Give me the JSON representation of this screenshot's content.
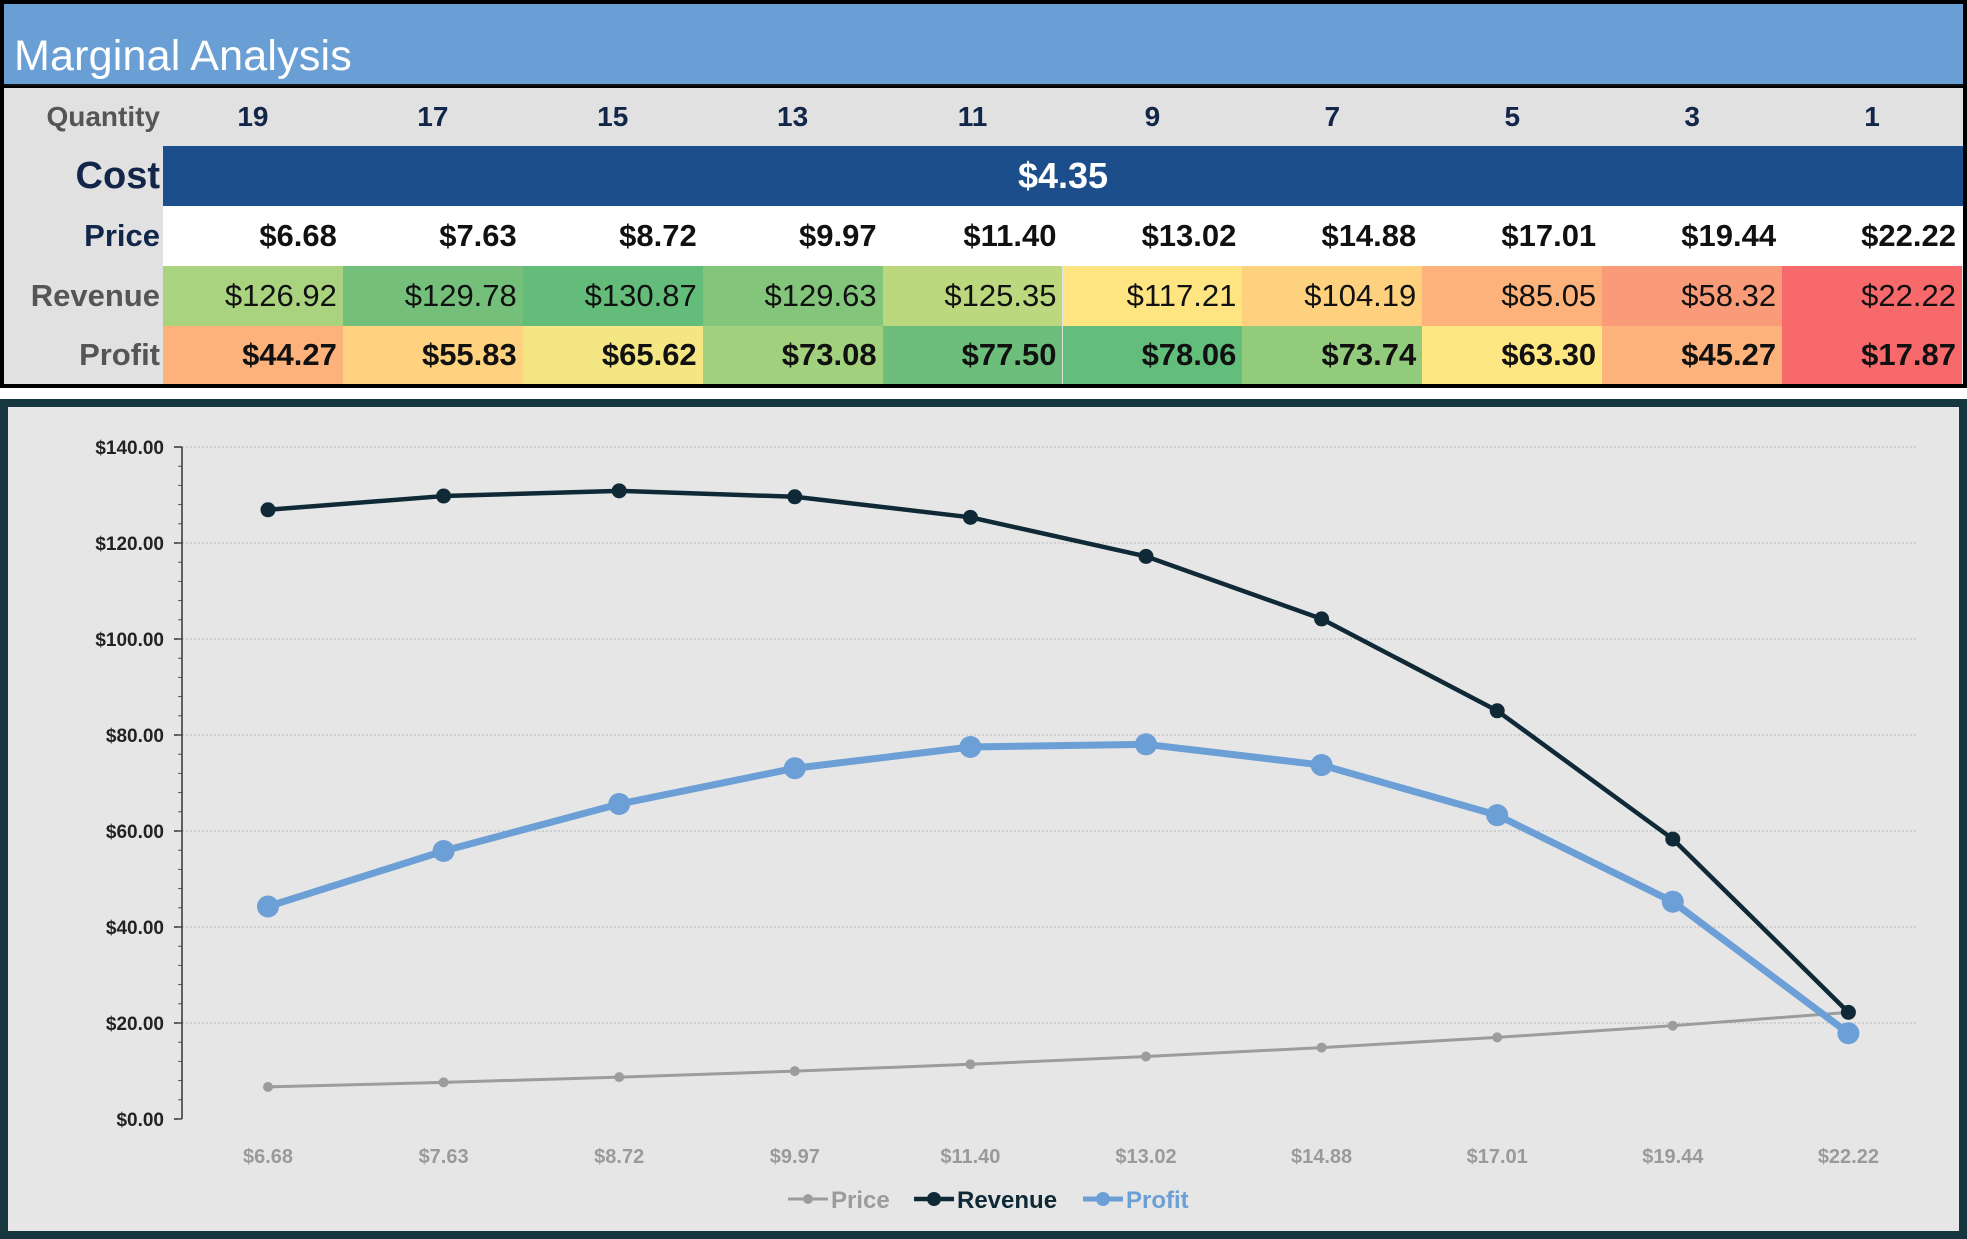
{
  "title": "Marginal Analysis",
  "labels": {
    "quantity": "Quantity",
    "cost": "Cost",
    "price": "Price",
    "revenue": "Revenue",
    "profit": "Profit"
  },
  "quantities": [
    "19",
    "17",
    "15",
    "13",
    "11",
    "9",
    "7",
    "5",
    "3",
    "1"
  ],
  "cost_value": "$4.35",
  "prices": [
    "$6.68",
    "$7.63",
    "$8.72",
    "$9.97",
    "$11.40",
    "$13.02",
    "$14.88",
    "$17.01",
    "$19.44",
    "$22.22"
  ],
  "revenues": [
    "$126.92",
    "$129.78",
    "$130.87",
    "$129.63",
    "$125.35",
    "$117.21",
    "$104.19",
    "$85.05",
    "$58.32",
    "$22.22"
  ],
  "profits": [
    "$44.27",
    "$55.83",
    "$65.62",
    "$73.08",
    "$77.50",
    "$78.06",
    "$73.74",
    "$63.30",
    "$45.27",
    "$17.87"
  ],
  "revenue_colors": [
    "#a9d37e",
    "#74c07b",
    "#64bc7a",
    "#82c57b",
    "#bcd87f",
    "#fee582",
    "#fdd17e",
    "#fcb27a",
    "#f99a79",
    "#f8696b"
  ],
  "profit_colors": [
    "#fcb27a",
    "#fed27f",
    "#f3e683",
    "#a2d17d",
    "#6dbe7b",
    "#63bd7b",
    "#93cb7c",
    "#fee683",
    "#fcb27a",
    "#f8696b"
  ],
  "colors": {
    "title_bar": "#6a9fd5",
    "cost_bar": "#1d4e8c",
    "price_line": "#9c9c9c",
    "revenue_line": "#0f2a36",
    "profit_line": "#6b9fd6"
  },
  "chart_data": {
    "type": "line",
    "categories": [
      "$6.68",
      "$7.63",
      "$8.72",
      "$9.97",
      "$11.40",
      "$13.02",
      "$14.88",
      "$17.01",
      "$19.44",
      "$22.22"
    ],
    "series": [
      {
        "name": "Price",
        "values": [
          6.68,
          7.63,
          8.72,
          9.97,
          11.4,
          13.02,
          14.88,
          17.01,
          19.44,
          22.22
        ]
      },
      {
        "name": "Revenue",
        "values": [
          126.92,
          129.78,
          130.87,
          129.63,
          125.35,
          117.21,
          104.19,
          85.05,
          58.32,
          22.22
        ]
      },
      {
        "name": "Profit",
        "values": [
          44.27,
          55.83,
          65.62,
          73.08,
          77.5,
          78.06,
          73.74,
          63.3,
          45.27,
          17.87
        ]
      }
    ],
    "yticks": [
      "$0.00",
      "$20.00",
      "$40.00",
      "$60.00",
      "$80.00",
      "$100.00",
      "$120.00",
      "$140.00"
    ],
    "ylim": [
      0,
      140
    ],
    "grid": true,
    "legend": "bottom"
  }
}
